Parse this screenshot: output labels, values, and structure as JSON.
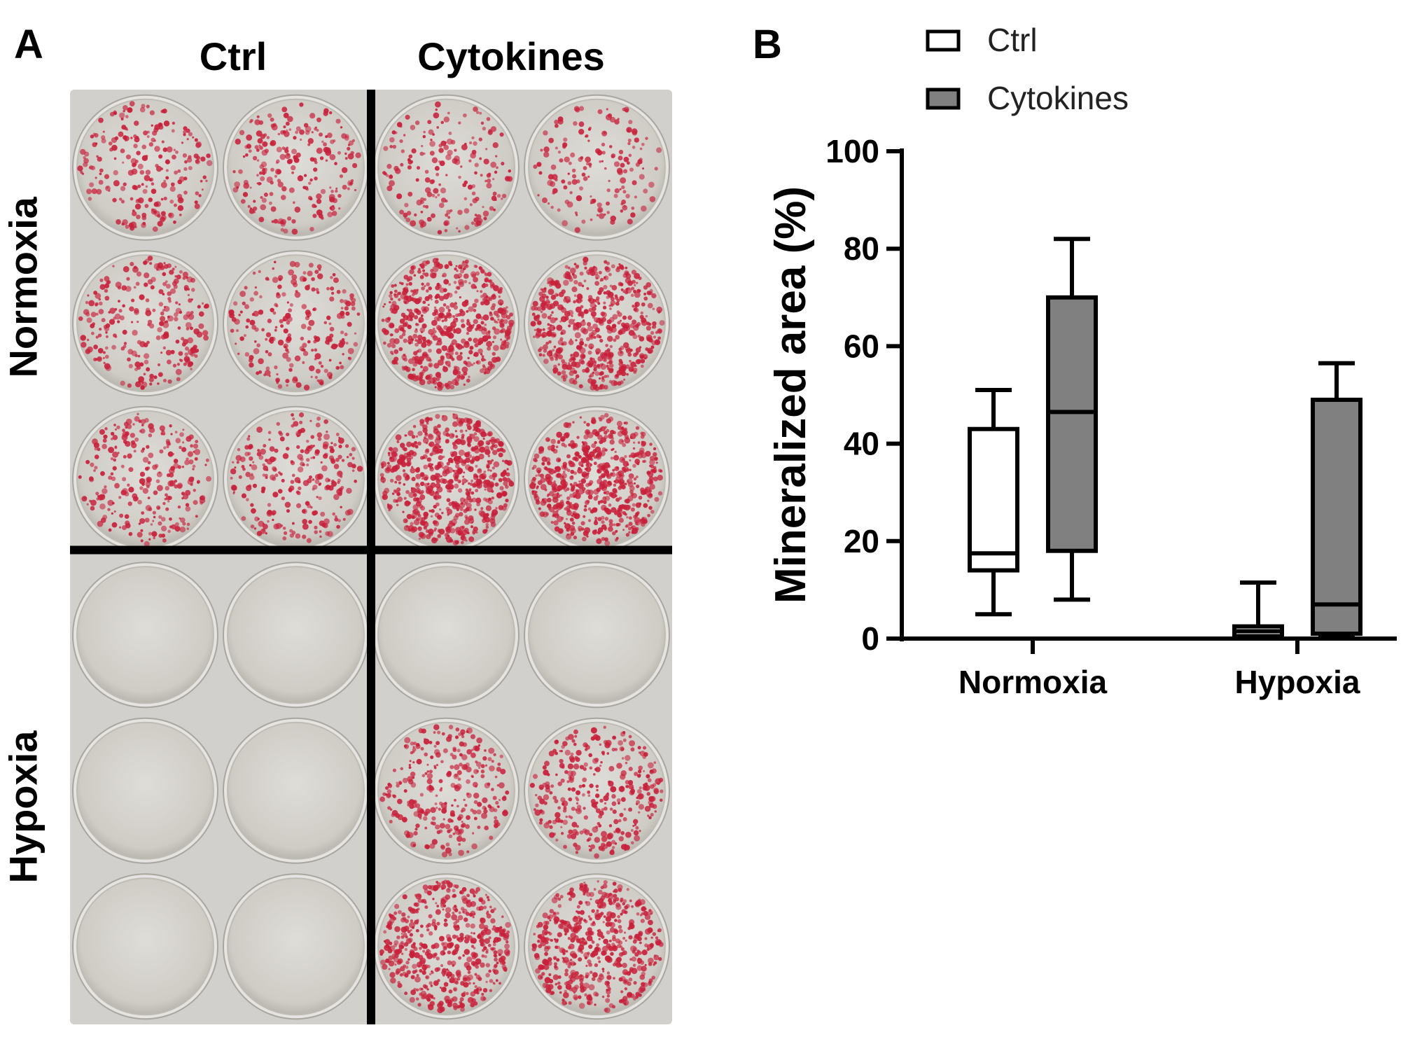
{
  "panel_a": {
    "letter": "A",
    "columns": [
      "Ctrl",
      "Cytokines"
    ],
    "rows": [
      "Normoxia",
      "Hypoxia"
    ],
    "wells": [
      {
        "row": "Normoxia",
        "column": "Ctrl",
        "staining": [
          0.35,
          0.35,
          0.4,
          0.35,
          0.4,
          0.4
        ]
      },
      {
        "row": "Normoxia",
        "column": "Cytokines",
        "staining": [
          0.3,
          0.25,
          0.85,
          0.85,
          0.95,
          0.95
        ]
      },
      {
        "row": "Hypoxia",
        "column": "Ctrl",
        "staining": [
          0,
          0,
          0,
          0,
          0,
          0
        ]
      },
      {
        "row": "Hypoxia",
        "column": "Cytokines",
        "staining": [
          0,
          0,
          0.45,
          0.5,
          0.8,
          0.8
        ]
      }
    ],
    "colors": {
      "stain": "#c8203a",
      "plate": "#d2d0cc",
      "divider": "#000000"
    }
  },
  "panel_b": {
    "letter": "B"
  },
  "chart_data": {
    "type": "box",
    "ylabel": "Mineralized area (%)",
    "xlabel": "",
    "ylim": [
      0,
      100
    ],
    "yticks": [
      0,
      20,
      40,
      60,
      80,
      100
    ],
    "categories": [
      "Normoxia",
      "Hypoxia"
    ],
    "legend_position": "top-right",
    "series": [
      {
        "name": "Ctrl",
        "color": "#ffffff",
        "boxes": [
          {
            "category": "Normoxia",
            "min": 5,
            "q1": 14,
            "median": 17.5,
            "q3": 43,
            "max": 51
          },
          {
            "category": "Hypoxia",
            "min": 0,
            "q1": 0.5,
            "median": 1.5,
            "q3": 2.5,
            "max": 11.5
          }
        ]
      },
      {
        "name": "Cytokines",
        "color": "#808080",
        "boxes": [
          {
            "category": "Normoxia",
            "min": 8,
            "q1": 18,
            "median": 46.5,
            "q3": 70,
            "max": 82
          },
          {
            "category": "Hypoxia",
            "min": 0.5,
            "q1": 1,
            "median": 7,
            "q3": 49,
            "max": 56.5
          }
        ]
      }
    ]
  }
}
